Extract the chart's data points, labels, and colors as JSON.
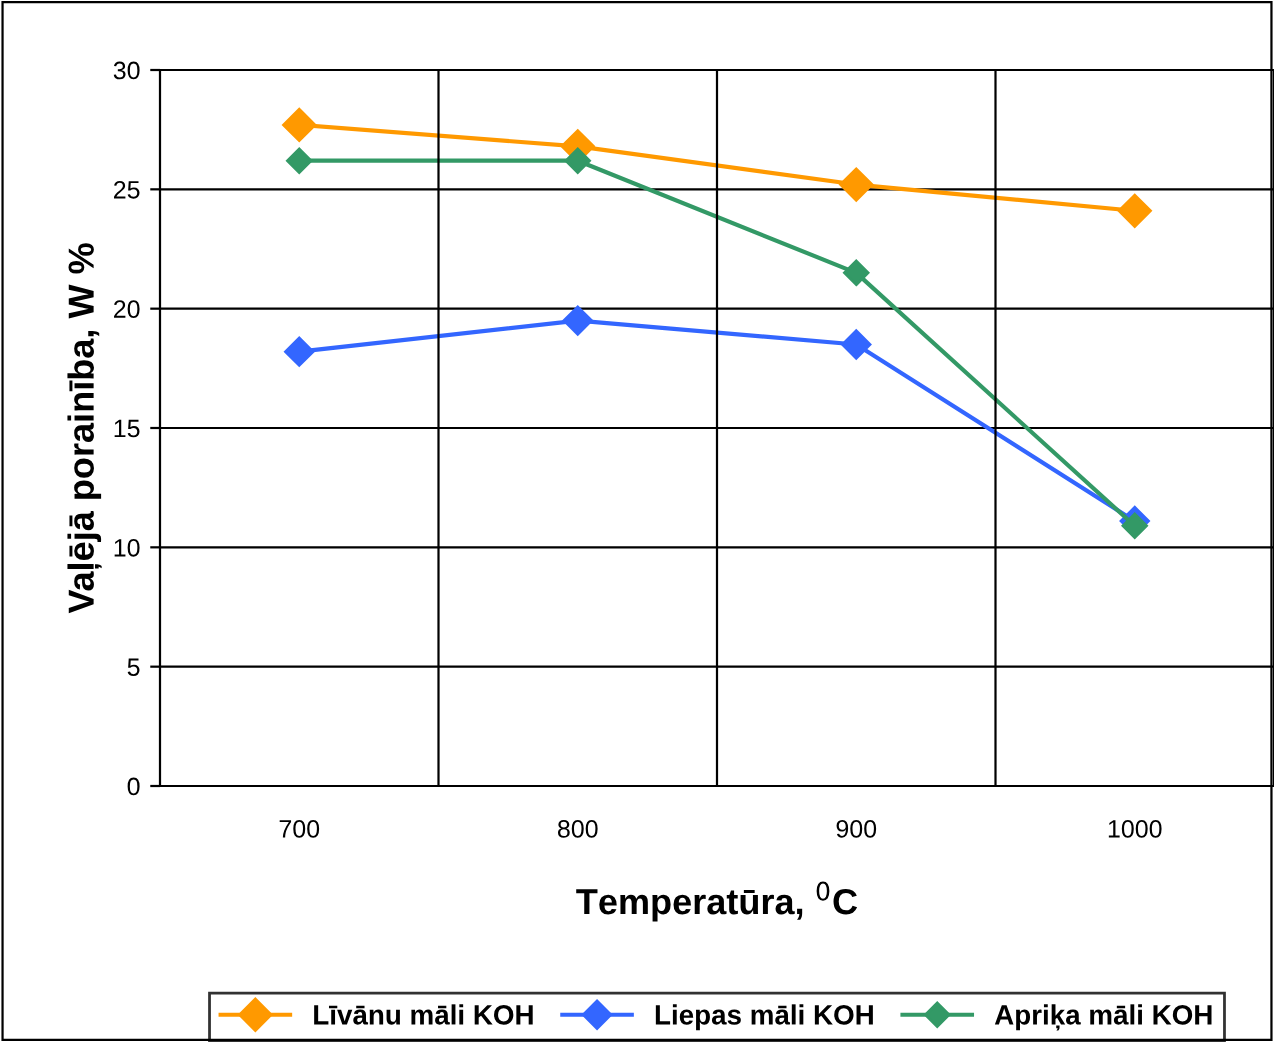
{
  "chart_data": {
    "type": "line",
    "xlabel": "Temperatūra, $^{0}$C",
    "ylabel": "Vaļējā porainība, W %",
    "categories": [
      "700",
      "800",
      "900",
      "1000"
    ],
    "series": [
      {
        "name": "Līvānu māli KOH",
        "color": "#ff9900",
        "values": [
          27.7,
          26.8,
          25.2,
          24.1
        ]
      },
      {
        "name": "Liepas māli KOH",
        "color": "#3366ff",
        "values": [
          18.2,
          19.5,
          18.5,
          11.1
        ]
      },
      {
        "name": "Apriķa māli KOH",
        "color": "#339966",
        "values": [
          26.2,
          26.2,
          21.5,
          10.9
        ]
      }
    ],
    "ylim": [
      0,
      30
    ],
    "yticks": [
      0,
      5,
      10,
      15,
      20,
      25,
      30
    ],
    "grid": true,
    "legend": "bottom",
    "marker": "diamond",
    "line_style": "solid"
  }
}
